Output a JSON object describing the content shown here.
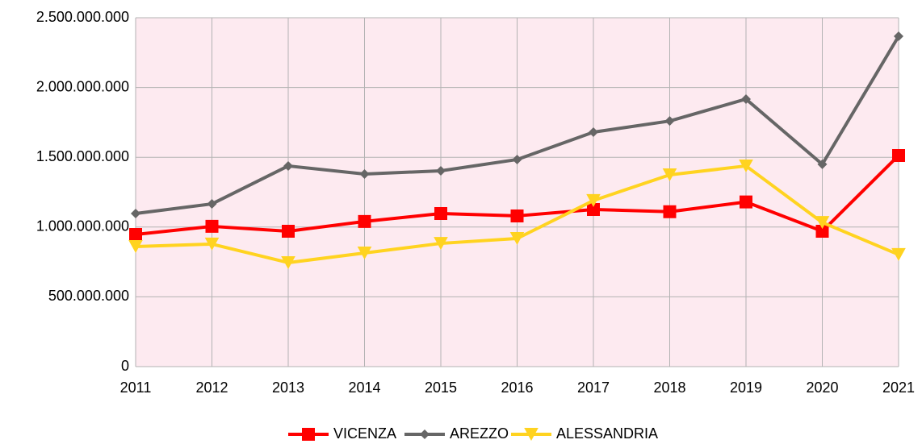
{
  "chart_data": {
    "type": "line",
    "categories": [
      "2011",
      "2012",
      "2013",
      "2014",
      "2015",
      "2016",
      "2017",
      "2018",
      "2019",
      "2020",
      "2021"
    ],
    "series": [
      {
        "name": "VICENZA",
        "color": "#ff0000",
        "marker": "square",
        "values": [
          947000000,
          1005000000,
          970000000,
          1040000000,
          1097000000,
          1080000000,
          1126000000,
          1110000000,
          1180000000,
          970000000,
          1513000000
        ]
      },
      {
        "name": "AREZZO",
        "color": "#666666",
        "marker": "diamond",
        "values": [
          1097000000,
          1166000000,
          1438000000,
          1380000000,
          1403000000,
          1484000000,
          1680000000,
          1760000000,
          1917000000,
          1450000000,
          2367000000
        ]
      },
      {
        "name": "ALESSANDRIA",
        "color": "#ffd320",
        "marker": "triangle-down",
        "values": [
          860000000,
          878000000,
          745000000,
          814000000,
          883000000,
          918000000,
          1190000000,
          1374000000,
          1438000000,
          1033000000,
          803000000
        ]
      }
    ],
    "ylim": [
      0,
      2500000000
    ],
    "yticks": [
      0,
      {
        "value": 500000000,
        "label": "500.000.000"
      },
      {
        "value": 1000000000,
        "label": "1.000.000.000"
      },
      {
        "value": 1500000000,
        "label": "1.500.000.000"
      },
      {
        "value": 2000000000,
        "label": "2.000.000.000"
      },
      {
        "value": 2500000000,
        "label": "2.500.000.000"
      }
    ],
    "grid": true,
    "legend": "bottom",
    "plot_background": "#fdeaf0"
  }
}
